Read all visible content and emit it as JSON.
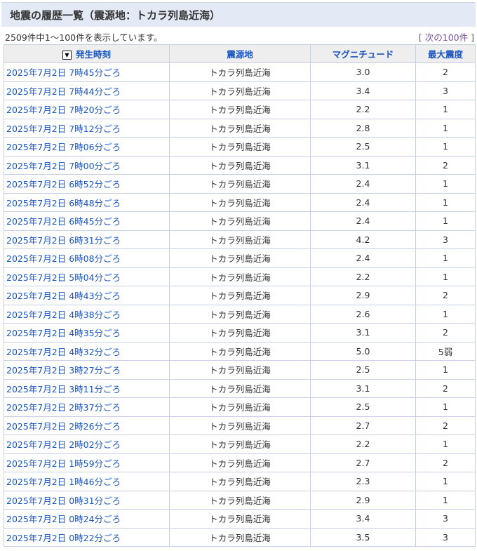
{
  "title": "地震の履歴一覧（震源地：トカラ列島近海）",
  "summary": "2509件中1～100件を表示しています。",
  "next": {
    "open": "[ ",
    "label": "次の100件",
    "close": " ]"
  },
  "columns": [
    "発生時刻",
    "震源地",
    "マグニチュード",
    "最大震度"
  ],
  "sort_icon": "▼",
  "rows": [
    [
      "2025年7月2日 7時45分ごろ",
      "トカラ列島近海",
      "3.0",
      "2"
    ],
    [
      "2025年7月2日 7時44分ごろ",
      "トカラ列島近海",
      "3.4",
      "3"
    ],
    [
      "2025年7月2日 7時20分ごろ",
      "トカラ列島近海",
      "2.2",
      "1"
    ],
    [
      "2025年7月2日 7時12分ごろ",
      "トカラ列島近海",
      "2.8",
      "1"
    ],
    [
      "2025年7月2日 7時06分ごろ",
      "トカラ列島近海",
      "2.5",
      "1"
    ],
    [
      "2025年7月2日 7時00分ごろ",
      "トカラ列島近海",
      "3.1",
      "2"
    ],
    [
      "2025年7月2日 6時52分ごろ",
      "トカラ列島近海",
      "2.4",
      "1"
    ],
    [
      "2025年7月2日 6時48分ごろ",
      "トカラ列島近海",
      "2.4",
      "1"
    ],
    [
      "2025年7月2日 6時45分ごろ",
      "トカラ列島近海",
      "2.4",
      "1"
    ],
    [
      "2025年7月2日 6時31分ごろ",
      "トカラ列島近海",
      "4.2",
      "3"
    ],
    [
      "2025年7月2日 6時08分ごろ",
      "トカラ列島近海",
      "2.4",
      "1"
    ],
    [
      "2025年7月2日 5時04分ごろ",
      "トカラ列島近海",
      "2.2",
      "1"
    ],
    [
      "2025年7月2日 4時43分ごろ",
      "トカラ列島近海",
      "2.9",
      "2"
    ],
    [
      "2025年7月2日 4時38分ごろ",
      "トカラ列島近海",
      "2.6",
      "1"
    ],
    [
      "2025年7月2日 4時35分ごろ",
      "トカラ列島近海",
      "3.1",
      "2"
    ],
    [
      "2025年7月2日 4時32分ごろ",
      "トカラ列島近海",
      "5.0",
      "5弱"
    ],
    [
      "2025年7月2日 3時27分ごろ",
      "トカラ列島近海",
      "2.5",
      "1"
    ],
    [
      "2025年7月2日 3時11分ごろ",
      "トカラ列島近海",
      "3.1",
      "2"
    ],
    [
      "2025年7月2日 2時37分ごろ",
      "トカラ列島近海",
      "2.5",
      "1"
    ],
    [
      "2025年7月2日 2時26分ごろ",
      "トカラ列島近海",
      "2.7",
      "2"
    ],
    [
      "2025年7月2日 2時02分ごろ",
      "トカラ列島近海",
      "2.2",
      "1"
    ],
    [
      "2025年7月2日 1時59分ごろ",
      "トカラ列島近海",
      "2.7",
      "2"
    ],
    [
      "2025年7月2日 1時46分ごろ",
      "トカラ列島近海",
      "2.3",
      "1"
    ],
    [
      "2025年7月2日 0時31分ごろ",
      "トカラ列島近海",
      "2.9",
      "1"
    ],
    [
      "2025年7月2日 0時24分ごろ",
      "トカラ列島近海",
      "3.4",
      "3"
    ],
    [
      "2025年7月2日 0時22分ごろ",
      "トカラ列島近海",
      "3.5",
      "3"
    ]
  ]
}
